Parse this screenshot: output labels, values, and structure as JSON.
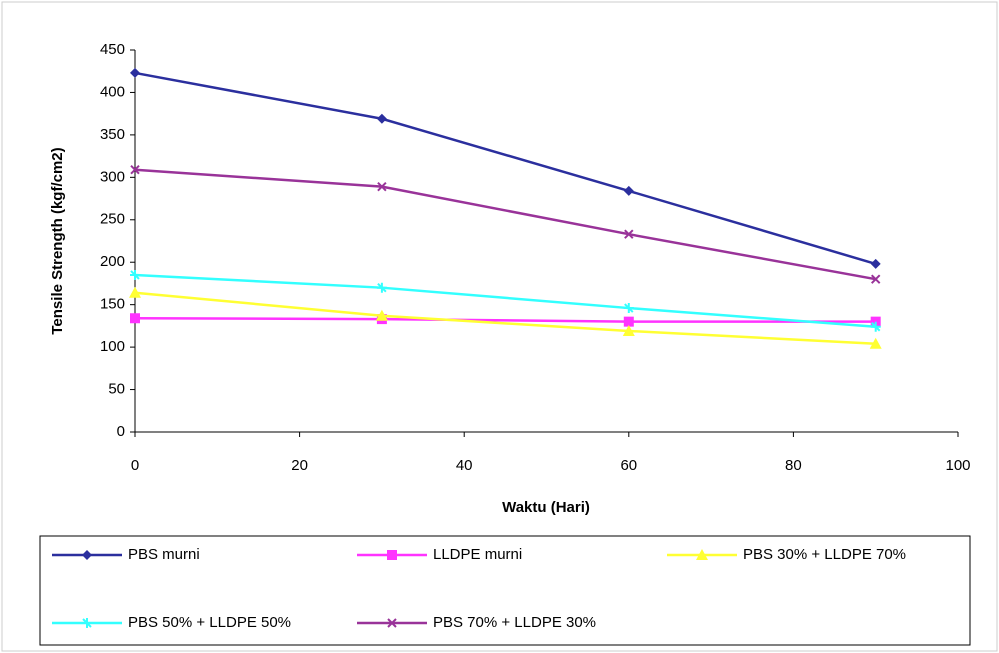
{
  "chart_data": {
    "type": "line",
    "y_label": "Tensile Strength (kgf/cm2)",
    "x_label": "Waktu (Hari)",
    "x": [
      0,
      30,
      60,
      90
    ],
    "xlim": [
      0,
      100
    ],
    "xticks": [
      0,
      20,
      40,
      60,
      80,
      100
    ],
    "ylim": [
      0,
      450
    ],
    "yticks": [
      0,
      50,
      100,
      150,
      200,
      250,
      300,
      350,
      400,
      450
    ],
    "series": [
      {
        "name": "PBS murni",
        "color": "#2b2f9e",
        "marker": "diamond",
        "values": [
          423,
          369,
          284,
          198
        ]
      },
      {
        "name": "LLDPE murni",
        "color": "#ff33ff",
        "marker": "square",
        "values": [
          134,
          133,
          130,
          130
        ]
      },
      {
        "name": "PBS 30% + LLDPE 70%",
        "color": "#ffff33",
        "marker": "triangle",
        "values": [
          164,
          137,
          119,
          104
        ]
      },
      {
        "name": "PBS 50% + LLDPE 50%",
        "color": "#33ffff",
        "marker": "cross",
        "values": [
          185,
          170,
          146,
          124
        ]
      },
      {
        "name": "PBS 70% + LLDPE 30%",
        "color": "#993399",
        "marker": "x",
        "values": [
          309,
          289,
          233,
          180
        ]
      }
    ]
  }
}
